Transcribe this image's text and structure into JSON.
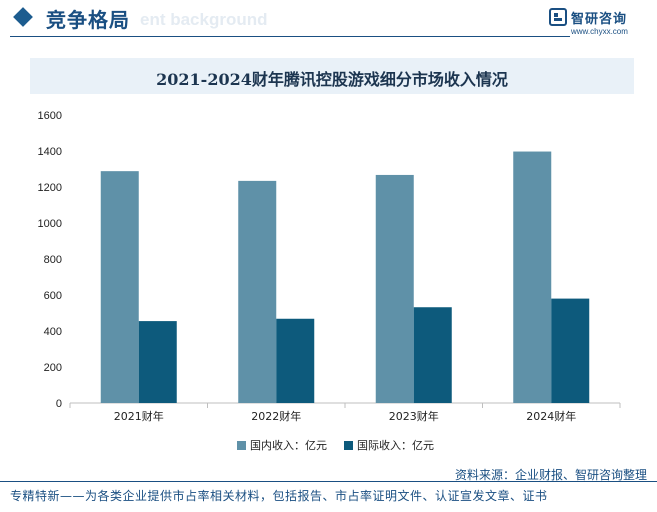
{
  "header": {
    "title": "竞争格局",
    "ghost_text": "ent background"
  },
  "brand": {
    "name": "智研咨询",
    "url": "www.chyxx.com",
    "logo_icon": "chyxx-logo-icon"
  },
  "colors": {
    "domestic": "#5f91a8",
    "international": "#0d5a7c",
    "accent": "#1a4f82"
  },
  "chart_data": {
    "type": "bar",
    "title": "2021-2024财年腾讯控股游戏细分市场收入情况",
    "categories": [
      "2021财年",
      "2022财年",
      "2023财年",
      "2024财年"
    ],
    "series": [
      {
        "name": "国内收入：亿元",
        "values": [
          1288,
          1234,
          1267,
          1397
        ]
      },
      {
        "name": "国际收入：亿元",
        "values": [
          455,
          468,
          532,
          580
        ]
      }
    ],
    "yticks": [
      "0",
      "200",
      "400",
      "600",
      "800",
      "1000",
      "1200",
      "1400",
      "1600"
    ],
    "ylim": [
      0,
      1600
    ],
    "grid": false,
    "legend": "bottom"
  },
  "source": "资料来源：企业财报、智研咨询整理",
  "footer": "专精特新——为各类企业提供市占率相关材料，包括报告、市占率证明文件、认证宣发文章、证书"
}
